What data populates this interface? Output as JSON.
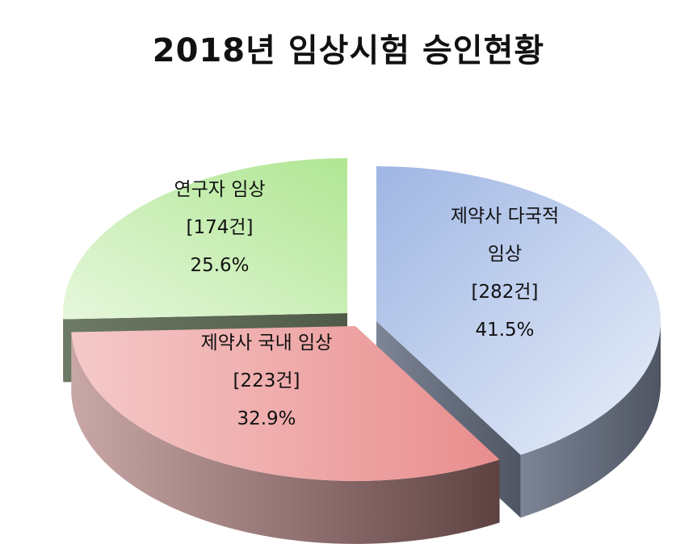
{
  "title": "2018년 임상시험 승인현황",
  "chart_data": {
    "type": "pie",
    "title": "2018년 임상시험 승인현황",
    "slices": [
      {
        "name": "제약사 다국적 임상",
        "label_lines": [
          "제약사 다국적",
          "임상"
        ],
        "count_label": "[282건]",
        "value": 282,
        "percent_label": "41.5%",
        "percent": 41.5,
        "color": "#a9bfe6"
      },
      {
        "name": "제약사 국내 임상",
        "label_lines": [
          "제약사 국내 임상"
        ],
        "count_label": "[223건]",
        "value": 223,
        "percent_label": "32.9%",
        "percent": 32.9,
        "color": "#ee9a9a"
      },
      {
        "name": "연구자 임상",
        "label_lines": [
          "연구자 임상"
        ],
        "count_label": "[174건]",
        "value": 174,
        "percent_label": "25.6%",
        "percent": 25.6,
        "color": "#bde8a4"
      }
    ]
  }
}
